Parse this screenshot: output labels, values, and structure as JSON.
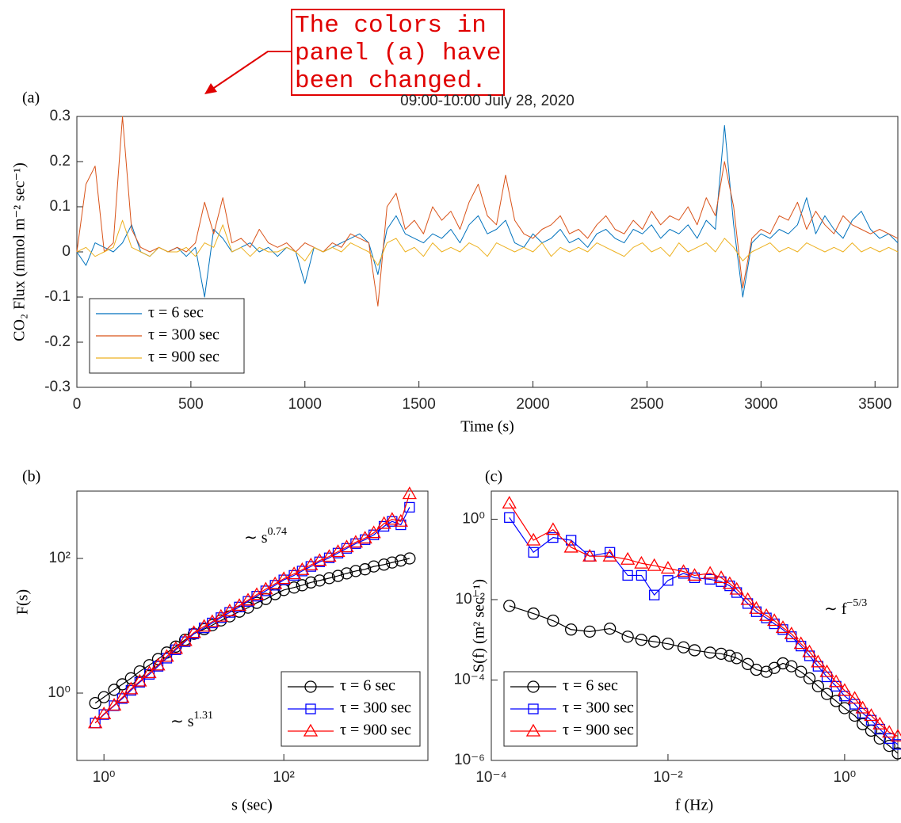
{
  "annotation": {
    "lines": [
      "The colors in",
      "panel (a) have",
      "been changed."
    ]
  },
  "chart_data": [
    {
      "type": "line",
      "panel_label": "(a)",
      "title": "09:00-10:00 July 28, 2020",
      "x_label": "Time (s)",
      "y_label": "CO₂ Flux (mmol m⁻² sec⁻¹)",
      "xlim": [
        0,
        3600
      ],
      "xticks": [
        0,
        500,
        1000,
        1500,
        2000,
        2500,
        3000,
        3500
      ],
      "ylim": [
        -0.3,
        0.3
      ],
      "yticks": [
        -0.3,
        -0.2,
        -0.1,
        0,
        0.1,
        0.2,
        0.3
      ],
      "legend": "lower left",
      "x": [
        0,
        40,
        80,
        120,
        160,
        200,
        240,
        280,
        320,
        360,
        400,
        440,
        480,
        520,
        560,
        600,
        640,
        680,
        720,
        760,
        800,
        840,
        880,
        920,
        960,
        1000,
        1040,
        1080,
        1120,
        1160,
        1200,
        1240,
        1280,
        1320,
        1360,
        1400,
        1440,
        1480,
        1520,
        1560,
        1600,
        1640,
        1680,
        1720,
        1760,
        1800,
        1840,
        1880,
        1920,
        1960,
        2000,
        2040,
        2080,
        2120,
        2160,
        2200,
        2240,
        2280,
        2320,
        2360,
        2400,
        2440,
        2480,
        2520,
        2560,
        2600,
        2640,
        2680,
        2720,
        2760,
        2800,
        2840,
        2880,
        2920,
        2960,
        3000,
        3040,
        3080,
        3120,
        3160,
        3200,
        3240,
        3280,
        3320,
        3360,
        3400,
        3440,
        3480,
        3520,
        3560,
        3600
      ],
      "series": [
        {
          "name": "τ = 6 sec",
          "color": "#0072BD",
          "values": [
            0.0,
            -0.03,
            0.02,
            0.01,
            0.0,
            0.02,
            0.06,
            0.0,
            -0.01,
            0.01,
            0.0,
            0.01,
            -0.01,
            0.01,
            -0.1,
            0.05,
            0.03,
            0.0,
            0.01,
            0.02,
            0.0,
            0.01,
            -0.01,
            0.01,
            0.0,
            -0.07,
            0.01,
            0.0,
            0.01,
            0.02,
            0.03,
            0.04,
            0.02,
            -0.05,
            0.05,
            0.08,
            0.04,
            0.03,
            0.02,
            0.04,
            0.03,
            0.05,
            0.02,
            0.06,
            0.08,
            0.04,
            0.05,
            0.07,
            0.02,
            0.01,
            0.04,
            0.02,
            0.03,
            0.05,
            0.02,
            0.03,
            0.01,
            0.04,
            0.05,
            0.03,
            0.02,
            0.05,
            0.04,
            0.06,
            0.03,
            0.05,
            0.04,
            0.06,
            0.03,
            0.07,
            0.05,
            0.28,
            0.06,
            -0.1,
            0.02,
            0.04,
            0.03,
            0.05,
            0.04,
            0.06,
            0.12,
            0.04,
            0.08,
            0.05,
            0.03,
            0.07,
            0.09,
            0.05,
            0.03,
            0.04,
            0.02
          ]
        },
        {
          "name": "τ = 300 sec",
          "color": "#D95319",
          "values": [
            0.0,
            0.15,
            0.19,
            0.0,
            0.02,
            0.3,
            0.05,
            0.01,
            0.0,
            0.01,
            0.0,
            0.01,
            0.0,
            0.02,
            0.11,
            0.04,
            0.12,
            0.02,
            0.03,
            0.01,
            0.05,
            0.02,
            0.01,
            0.02,
            0.0,
            0.02,
            0.01,
            0.0,
            0.02,
            0.01,
            0.04,
            0.03,
            0.02,
            -0.12,
            0.1,
            0.13,
            0.05,
            0.07,
            0.04,
            0.1,
            0.07,
            0.09,
            0.05,
            0.11,
            0.15,
            0.08,
            0.06,
            0.17,
            0.07,
            0.04,
            0.03,
            0.05,
            0.06,
            0.08,
            0.04,
            0.05,
            0.03,
            0.06,
            0.08,
            0.05,
            0.04,
            0.07,
            0.05,
            0.09,
            0.06,
            0.08,
            0.07,
            0.1,
            0.06,
            0.12,
            0.08,
            0.2,
            0.1,
            -0.08,
            0.03,
            0.05,
            0.04,
            0.08,
            0.07,
            0.11,
            0.05,
            0.09,
            0.06,
            0.04,
            0.08,
            0.06,
            0.05,
            0.04,
            0.05,
            0.04,
            0.03
          ]
        },
        {
          "name": "τ = 900 sec",
          "color": "#EDB120",
          "values": [
            0.0,
            0.01,
            -0.01,
            0.0,
            0.01,
            0.07,
            0.01,
            0.0,
            -0.01,
            0.01,
            0.0,
            0.0,
            0.01,
            -0.01,
            0.02,
            0.01,
            0.06,
            0.0,
            0.01,
            -0.01,
            0.01,
            0.0,
            0.0,
            0.01,
            0.0,
            -0.02,
            0.01,
            0.0,
            0.01,
            0.0,
            0.02,
            0.01,
            0.0,
            -0.03,
            0.02,
            0.03,
            0.0,
            0.01,
            -0.01,
            0.02,
            0.0,
            0.01,
            0.0,
            0.02,
            0.01,
            -0.01,
            0.02,
            0.01,
            0.0,
            0.01,
            0.0,
            0.02,
            -0.01,
            0.01,
            0.0,
            0.01,
            0.0,
            0.02,
            0.01,
            0.0,
            -0.01,
            0.01,
            0.02,
            0.0,
            0.01,
            -0.01,
            0.02,
            0.0,
            0.01,
            0.02,
            0.0,
            0.03,
            0.01,
            -0.02,
            0.0,
            0.01,
            0.02,
            0.0,
            0.01,
            0.0,
            0.02,
            0.01,
            0.0,
            0.01,
            0.0,
            0.02,
            0.0,
            0.01,
            0.0,
            0.01,
            0.0
          ]
        }
      ]
    },
    {
      "type": "line",
      "panel_label": "(b)",
      "x_label": "s (sec)",
      "y_label": "F(s)",
      "xscale": "log",
      "yscale": "log",
      "xlim": [
        0.5,
        4000
      ],
      "xticks": [
        {
          "value": 1,
          "label": "10⁰"
        },
        {
          "value": 100,
          "label": "10²"
        }
      ],
      "ylim": [
        0.1,
        1000
      ],
      "yticks": [
        {
          "value": 1,
          "label": "10⁰"
        },
        {
          "value": 100,
          "label": "10²"
        }
      ],
      "legend": "lower right",
      "annotations": [
        {
          "text": "∼ s",
          "superscript": "0.74"
        },
        {
          "text": "∼ s",
          "superscript": "1.31"
        }
      ],
      "x": [
        0.8,
        1,
        1.3,
        1.6,
        2,
        2.5,
        3.2,
        4,
        5,
        6.3,
        8,
        10,
        13,
        16,
        20,
        25,
        32,
        40,
        50,
        63,
        80,
        100,
        130,
        160,
        200,
        250,
        320,
        400,
        500,
        630,
        800,
        1000,
        1300,
        1600,
        2000,
        2500
      ],
      "series": [
        {
          "name": "τ = 6 sec",
          "color": "#000000",
          "marker": "circle",
          "values": [
            0.71,
            0.87,
            1.12,
            1.35,
            1.66,
            2.1,
            2.6,
            3.2,
            4.0,
            4.9,
            6.2,
            7.6,
            8.9,
            10.2,
            12,
            13.8,
            16.2,
            18.6,
            21.9,
            25,
            29.5,
            34,
            37,
            40,
            44,
            47,
            51,
            55,
            60,
            65,
            69,
            76,
            81,
            87,
            93,
            100
          ]
        },
        {
          "name": "τ = 300 sec",
          "color": "#0000ff",
          "marker": "square",
          "values": [
            0.36,
            0.48,
            0.65,
            0.83,
            1.1,
            1.45,
            1.9,
            2.5,
            3.3,
            4.4,
            5.8,
            7.6,
            9.3,
            11,
            13.2,
            15.8,
            19,
            23,
            27.5,
            33,
            40,
            48,
            56,
            65,
            76,
            89,
            102,
            120,
            141,
            166,
            190,
            224,
            300,
            355,
            316,
            575
          ]
        },
        {
          "name": "τ = 900 sec",
          "color": "#ff0000",
          "marker": "triangle",
          "values": [
            0.36,
            0.49,
            0.66,
            0.86,
            1.15,
            1.5,
            2.0,
            2.6,
            3.5,
            4.6,
            6.0,
            7.9,
            9.8,
            11.5,
            13.8,
            16.6,
            20,
            24,
            29,
            35,
            42,
            50,
            59,
            68,
            80,
            93,
            107,
            126,
            148,
            174,
            200,
            240,
            330,
            380,
            355,
            910
          ]
        }
      ]
    },
    {
      "type": "line",
      "panel_label": "(c)",
      "x_label": "f (Hz)",
      "y_label": "S(f) (m² sec⁻¹)",
      "xscale": "log",
      "yscale": "log",
      "xlim": [
        0.0001,
        4
      ],
      "xticks": [
        {
          "value": 0.0001,
          "label": "10⁻⁴"
        },
        {
          "value": 0.01,
          "label": "10⁻²"
        },
        {
          "value": 1,
          "label": "10⁰"
        }
      ],
      "ylim": [
        1e-06,
        5
      ],
      "yticks": [
        {
          "value": 1e-06,
          "label": "10⁻⁶"
        },
        {
          "value": 0.0001,
          "label": "10⁻⁴"
        },
        {
          "value": 0.01,
          "label": "10⁻²"
        },
        {
          "value": 1,
          "label": "10⁰"
        }
      ],
      "legend": "lower left",
      "annotations": [
        {
          "text": "∼ f",
          "superscript": "−5/3"
        }
      ],
      "x": [
        0.00016,
        0.0003,
        0.0005,
        0.0008,
        0.0013,
        0.0022,
        0.0035,
        0.005,
        0.007,
        0.01,
        0.015,
        0.02,
        0.03,
        0.04,
        0.05,
        0.06,
        0.08,
        0.1,
        0.13,
        0.16,
        0.2,
        0.25,
        0.32,
        0.4,
        0.5,
        0.63,
        0.8,
        1.0,
        1.3,
        1.6,
        2.0,
        2.5,
        3.2,
        4.0
      ],
      "series": [
        {
          "name": "τ = 6 sec",
          "color": "#000000",
          "marker": "circle",
          "values": [
            0.007,
            0.0045,
            0.003,
            0.0018,
            0.0016,
            0.0019,
            0.0012,
            0.001,
            0.0009,
            0.0008,
            0.00065,
            0.00055,
            0.00048,
            0.00045,
            0.0004,
            0.00035,
            0.00025,
            0.00018,
            0.00016,
            0.0002,
            0.00026,
            0.00022,
            0.00016,
            0.00011,
            7e-05,
            4.5e-05,
            3e-05,
            2e-05,
            1.3e-05,
            8e-06,
            5.5e-06,
            3.5e-06,
            2.3e-06,
            1.5e-06
          ]
        },
        {
          "name": "τ = 300 sec",
          "color": "#0000ff",
          "marker": "square",
          "values": [
            1.1,
            0.15,
            0.35,
            0.3,
            0.12,
            0.15,
            0.04,
            0.04,
            0.013,
            0.03,
            0.045,
            0.035,
            0.032,
            0.028,
            0.022,
            0.015,
            0.008,
            0.005,
            0.0035,
            0.0025,
            0.0018,
            0.0012,
            0.0007,
            0.0004,
            0.00022,
            0.00012,
            7e-05,
            4e-05,
            2.5e-05,
            1.5e-05,
            1e-05,
            6e-06,
            3.5e-06,
            2.5e-06
          ]
        },
        {
          "name": "τ = 900 sec",
          "color": "#ff0000",
          "marker": "triangle",
          "values": [
            2.5,
            0.3,
            0.55,
            0.2,
            0.12,
            0.12,
            0.1,
            0.08,
            0.07,
            0.06,
            0.05,
            0.04,
            0.045,
            0.035,
            0.025,
            0.018,
            0.01,
            0.006,
            0.004,
            0.003,
            0.002,
            0.0014,
            0.0008,
            0.0005,
            0.00028,
            0.00016,
            9e-05,
            5.5e-05,
            3.5e-05,
            2e-05,
            1.3e-05,
            8e-06,
            5e-06,
            4e-06
          ]
        }
      ]
    }
  ]
}
